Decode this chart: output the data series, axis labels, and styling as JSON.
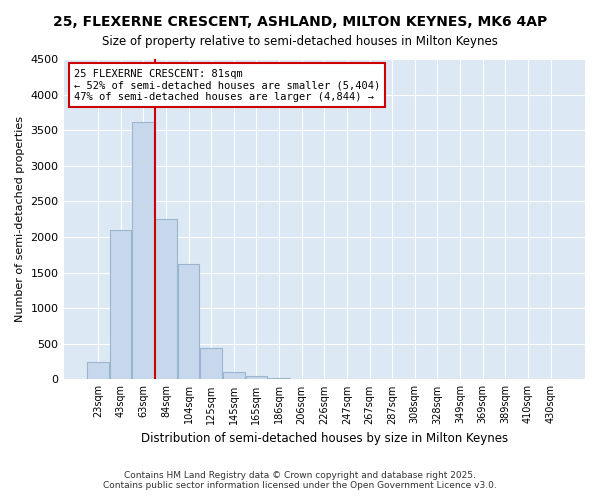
{
  "title": "25, FLEXERNE CRESCENT, ASHLAND, MILTON KEYNES, MK6 4AP",
  "subtitle": "Size of property relative to semi-detached houses in Milton Keynes",
  "xlabel": "Distribution of semi-detached houses by size in Milton Keynes",
  "ylabel": "Number of semi-detached properties",
  "categories": [
    "23sqm",
    "43sqm",
    "63sqm",
    "84sqm",
    "104sqm",
    "125sqm",
    "145sqm",
    "165sqm",
    "186sqm",
    "206sqm",
    "226sqm",
    "247sqm",
    "267sqm",
    "287sqm",
    "308sqm",
    "328sqm",
    "349sqm",
    "369sqm",
    "389sqm",
    "410sqm",
    "430sqm"
  ],
  "values": [
    250,
    2100,
    3620,
    2250,
    1620,
    440,
    100,
    50,
    20,
    0,
    0,
    0,
    0,
    0,
    0,
    0,
    0,
    0,
    0,
    0,
    0
  ],
  "bar_color": "#c8d8ec",
  "bar_edge_color": "#9ab5d0",
  "annotation_text": "25 FLEXERNE CRESCENT: 81sqm",
  "annotation_smaller": "← 52% of semi-detached houses are smaller (5,404)",
  "annotation_larger": "47% of semi-detached houses are larger (4,844) →",
  "annotation_box_color": "#ffffff",
  "annotation_box_edge": "#cc0000",
  "vline_color": "#cc0000",
  "vline_x": 3.0,
  "ylim": [
    0,
    4500
  ],
  "plot_bg_color": "#dce9f5",
  "fig_bg_color": "#ffffff",
  "grid_color": "#ffffff",
  "footer1": "Contains HM Land Registry data © Crown copyright and database right 2025.",
  "footer2": "Contains public sector information licensed under the Open Government Licence v3.0."
}
